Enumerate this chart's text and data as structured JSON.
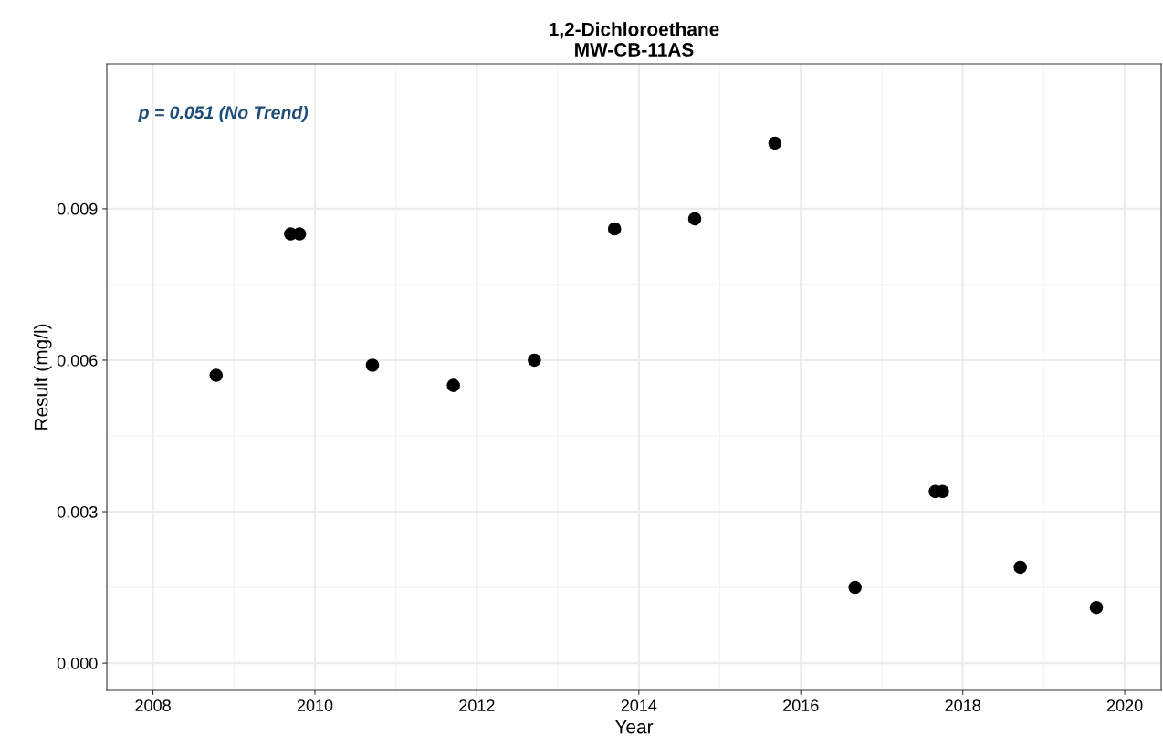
{
  "chart_data": {
    "type": "scatter",
    "title": "1,2-Dichloroethane\nMW-CB-11AS",
    "xlabel": "Year",
    "ylabel": "Result (mg/l)",
    "annotations": [
      "p = 0.051 (No Trend)"
    ],
    "x": [
      2008.78,
      2009.7,
      2009.81,
      2010.71,
      2011.71,
      2012.71,
      2013.7,
      2014.69,
      2015.68,
      2016.67,
      2017.66,
      2017.75,
      2018.71,
      2019.65
    ],
    "series": [
      {
        "color": "#000000",
        "values": [
          0.0057,
          0.0085,
          0.0085,
          0.0059,
          0.0055,
          0.006,
          0.0086,
          0.0088,
          0.0103,
          0.0015,
          0.0034,
          0.0034,
          0.0019,
          0.0011
        ]
      }
    ],
    "xlim": [
      2007.43,
      2020.45
    ],
    "xticks": [
      2008,
      2010,
      2012,
      2014,
      2016,
      2018,
      2020
    ],
    "ylim": [
      -0.00054,
      0.01187
    ],
    "yticks": [
      {
        "value": 0,
        "label": "0.000"
      },
      {
        "value": 0.003,
        "label": "0.003"
      },
      {
        "value": 0.006,
        "label": "0.006"
      },
      {
        "value": 0.009,
        "label": "0.009"
      }
    ],
    "grid": true,
    "marker": "circle"
  }
}
